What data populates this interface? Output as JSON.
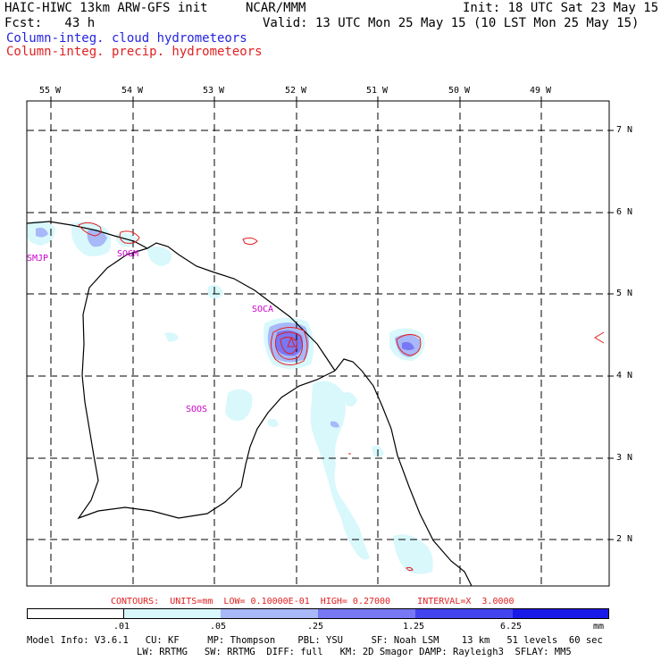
{
  "header": {
    "title": "HAIC-HIWC 13km ARW-GFS init",
    "org": "NCAR/MMM",
    "init": "Init: 18 UTC Sat 23 May 15",
    "fcst": "Fcst:   43 h",
    "valid": "Valid: 13 UTC Mon 25 May 15 (10 LST Mon 25 May 15)",
    "legend_cloud": "Column-integ. cloud hydrometeors",
    "legend_precip": "Column-integ. precip. hydrometeors"
  },
  "axes": {
    "lon_labels": [
      "55 W",
      "54 W",
      "53 W",
      "52 W",
      "51 W",
      "50 W",
      "49 W"
    ],
    "lat_labels": [
      "7 N",
      "6 N",
      "5 N",
      "4 N",
      "3 N",
      "2 N"
    ]
  },
  "stations": [
    "SMJP",
    "SOGM",
    "SOCA",
    "SOOS"
  ],
  "contours_line": "CONTOURS:  UNITS=mm  LOW= 0.10000E-01  HIGH= 0.27000     INTERVAL=X  3.0000",
  "colorbar": {
    "labels": [
      ".01",
      ".05",
      ".25",
      "1.25",
      "6.25",
      "mm"
    ],
    "colors": [
      "#ffffff",
      "#d8f8fc",
      "#a8b8f8",
      "#7878f4",
      "#4444ee",
      "#1a1ae8"
    ]
  },
  "model_info": {
    "line1": "Model Info: V3.6.1   CU: KF     MP: Thompson    PBL: YSU     SF: Noah LSM    13 km   51 levels  60 sec",
    "line2": "LW: RRTMG   SW: RRTMG  DIFF: full   KM: 2D Smagor DAMP: Rayleigh3  SFLAY: MM5"
  }
}
